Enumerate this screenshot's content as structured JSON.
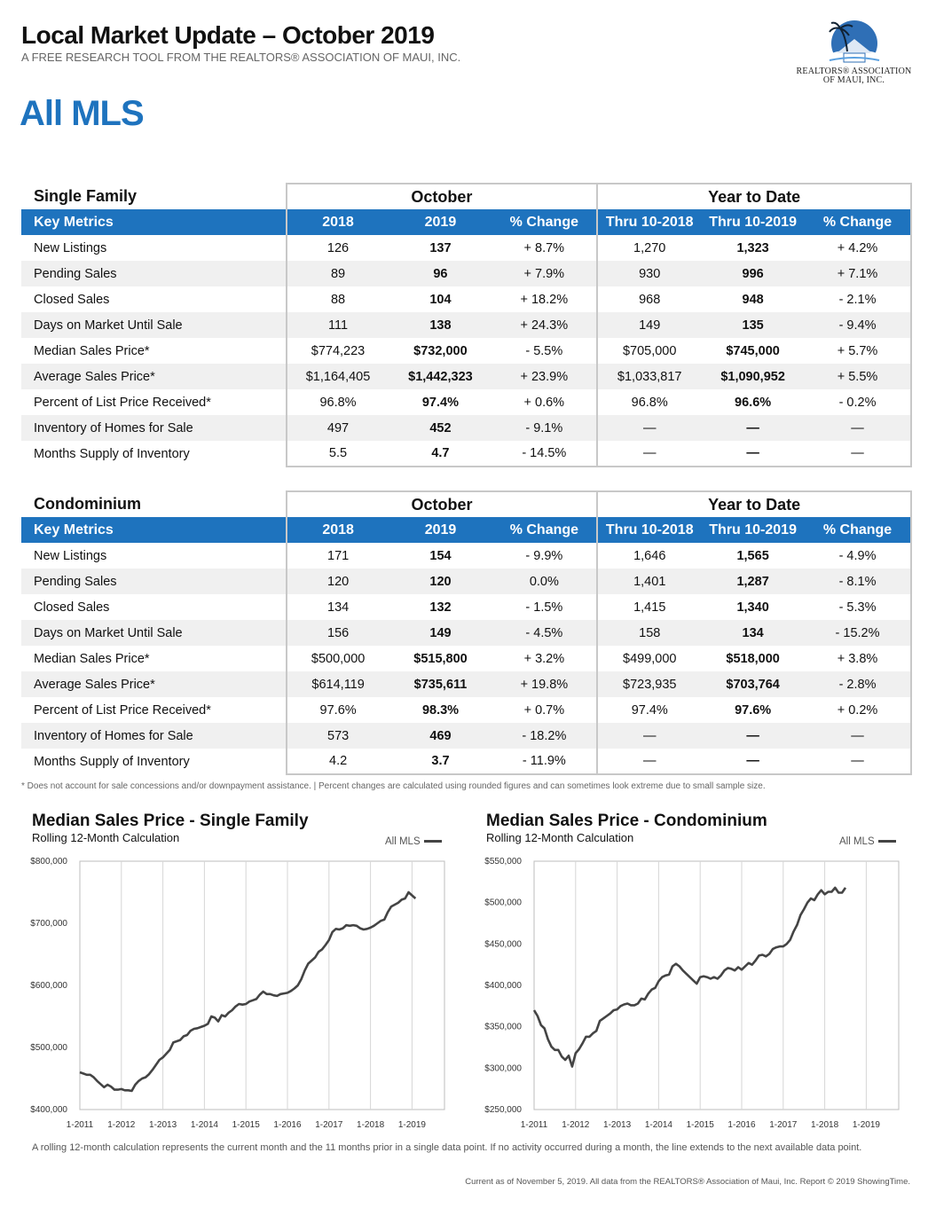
{
  "header": {
    "title": "Local Market Update – October 2019",
    "subtitle": "A FREE RESEARCH TOOL FROM THE REALTORS® ASSOCIATION OF MAUI, INC.",
    "area": "All MLS",
    "logo_line1": "REALTORS® ASSOCIATION",
    "logo_line2": "OF MAUI, INC."
  },
  "colors": {
    "accent": "#1e73be",
    "stripe": "#f0f0f0",
    "line": "#444444"
  },
  "tables": [
    {
      "title": "Single Family",
      "group_month": "October",
      "group_ytd": "Year to Date",
      "headers": [
        "Key Metrics",
        "2018",
        "2019",
        "% Change",
        "Thru 10-2018",
        "Thru 10-2019",
        "% Change"
      ],
      "rows": [
        [
          "New Listings",
          "126",
          "137",
          "+ 8.7%",
          "1,270",
          "1,323",
          "+ 4.2%"
        ],
        [
          "Pending Sales",
          "89",
          "96",
          "+ 7.9%",
          "930",
          "996",
          "+ 7.1%"
        ],
        [
          "Closed Sales",
          "88",
          "104",
          "+ 18.2%",
          "968",
          "948",
          "- 2.1%"
        ],
        [
          "Days on Market Until Sale",
          "111",
          "138",
          "+ 24.3%",
          "149",
          "135",
          "- 9.4%"
        ],
        [
          "Median Sales Price*",
          "$774,223",
          "$732,000",
          "- 5.5%",
          "$705,000",
          "$745,000",
          "+ 5.7%"
        ],
        [
          "Average Sales Price*",
          "$1,164,405",
          "$1,442,323",
          "+ 23.9%",
          "$1,033,817",
          "$1,090,952",
          "+ 5.5%"
        ],
        [
          "Percent of List Price Received*",
          "96.8%",
          "97.4%",
          "+ 0.6%",
          "96.8%",
          "96.6%",
          "- 0.2%"
        ],
        [
          "Inventory of Homes for Sale",
          "497",
          "452",
          "- 9.1%",
          "—",
          "—",
          "—"
        ],
        [
          "Months Supply of Inventory",
          "5.5",
          "4.7",
          "- 14.5%",
          "—",
          "—",
          "—"
        ]
      ]
    },
    {
      "title": "Condominium",
      "group_month": "October",
      "group_ytd": "Year to Date",
      "headers": [
        "Key Metrics",
        "2018",
        "2019",
        "% Change",
        "Thru 10-2018",
        "Thru 10-2019",
        "% Change"
      ],
      "rows": [
        [
          "New Listings",
          "171",
          "154",
          "- 9.9%",
          "1,646",
          "1,565",
          "- 4.9%"
        ],
        [
          "Pending Sales",
          "120",
          "120",
          "0.0%",
          "1,401",
          "1,287",
          "- 8.1%"
        ],
        [
          "Closed Sales",
          "134",
          "132",
          "- 1.5%",
          "1,415",
          "1,340",
          "- 5.3%"
        ],
        [
          "Days on Market Until Sale",
          "156",
          "149",
          "- 4.5%",
          "158",
          "134",
          "- 15.2%"
        ],
        [
          "Median Sales Price*",
          "$500,000",
          "$515,800",
          "+ 3.2%",
          "$499,000",
          "$518,000",
          "+ 3.8%"
        ],
        [
          "Average Sales Price*",
          "$614,119",
          "$735,611",
          "+ 19.8%",
          "$723,935",
          "$703,764",
          "- 2.8%"
        ],
        [
          "Percent of List Price Received*",
          "97.6%",
          "98.3%",
          "+ 0.7%",
          "97.4%",
          "97.6%",
          "+ 0.2%"
        ],
        [
          "Inventory of Homes for Sale",
          "573",
          "469",
          "- 18.2%",
          "—",
          "—",
          "—"
        ],
        [
          "Months Supply of Inventory",
          "4.2",
          "3.7",
          "- 11.9%",
          "—",
          "—",
          "—"
        ]
      ]
    }
  ],
  "footnote": "* Does not account for sale concessions and/or downpayment assistance. | Percent changes are calculated using rounded figures and can sometimes look extreme due to small sample size.",
  "chart_data": [
    {
      "type": "line",
      "title": "Median Sales Price - Single Family",
      "subtitle": "Rolling 12-Month Calculation",
      "legend": "All MLS",
      "legend_position": "top-right",
      "ylim": [
        400000,
        800000
      ],
      "yticks": [
        "$400,000",
        "$500,000",
        "$600,000",
        "$700,000",
        "$800,000"
      ],
      "xticks": [
        "1-2011",
        "1-2012",
        "1-2013",
        "1-2014",
        "1-2015",
        "1-2016",
        "1-2017",
        "1-2018",
        "1-2019"
      ],
      "grid": "vertical",
      "series": [
        {
          "name": "All MLS",
          "start": "1-2011",
          "values": [
            460000,
            458000,
            456000,
            456000,
            452000,
            446000,
            441000,
            436000,
            440000,
            437000,
            432000,
            432000,
            433000,
            431000,
            431000,
            430000,
            440000,
            446000,
            450000,
            452000,
            457000,
            464000,
            472000,
            480000,
            484000,
            490000,
            496000,
            508000,
            510000,
            512000,
            518000,
            520000,
            527000,
            530000,
            531000,
            533000,
            535000,
            538000,
            550000,
            548000,
            542000,
            552000,
            550000,
            556000,
            560000,
            566000,
            570000,
            569000,
            570000,
            574000,
            576000,
            578000,
            585000,
            590000,
            586000,
            586000,
            584000,
            583000,
            586000,
            587000,
            588000,
            591000,
            595000,
            600000,
            610000,
            624000,
            635000,
            640000,
            645000,
            654000,
            658000,
            665000,
            673000,
            686000,
            691000,
            690000,
            692000,
            697000,
            696000,
            697000,
            696000,
            692000,
            690000,
            691000,
            693000,
            696000,
            700000,
            704000,
            706000,
            718000,
            727000,
            730000,
            733000,
            738000,
            740000,
            750000,
            745000,
            740000
          ]
        }
      ]
    },
    {
      "type": "line",
      "title": "Median Sales Price - Condominium",
      "subtitle": "Rolling 12-Month Calculation",
      "legend": "All MLS",
      "legend_position": "top-right",
      "ylim": [
        250000,
        550000
      ],
      "yticks": [
        "$250,000",
        "$300,000",
        "$350,000",
        "$400,000",
        "$450,000",
        "$500,000",
        "$550,000"
      ],
      "xticks": [
        "1-2011",
        "1-2012",
        "1-2013",
        "1-2014",
        "1-2015",
        "1-2016",
        "1-2017",
        "1-2018",
        "1-2019"
      ],
      "grid": "vertical",
      "series": [
        {
          "name": "All MLS",
          "start": "1-2011",
          "values": [
            370000,
            363000,
            352000,
            348000,
            335000,
            326000,
            322000,
            322000,
            314000,
            310000,
            315000,
            302000,
            318000,
            323000,
            330000,
            338000,
            338000,
            342000,
            345000,
            357000,
            360000,
            363000,
            366000,
            370000,
            371000,
            375000,
            377000,
            378000,
            376000,
            376000,
            378000,
            384000,
            383000,
            390000,
            395000,
            397000,
            405000,
            410000,
            412000,
            413000,
            423000,
            426000,
            423000,
            418000,
            414000,
            410000,
            406000,
            402000,
            410000,
            411000,
            410000,
            408000,
            410000,
            408000,
            412000,
            418000,
            421000,
            420000,
            418000,
            422000,
            419000,
            423000,
            427000,
            425000,
            430000,
            436000,
            437000,
            435000,
            438000,
            444000,
            446000,
            447000,
            447000,
            450000,
            455000,
            465000,
            473000,
            485000,
            492000,
            500000,
            505000,
            503000,
            510000,
            515000,
            510000,
            513000,
            513000,
            518000,
            512000,
            512000,
            518000
          ]
        }
      ]
    }
  ],
  "bottom_note": "A rolling 12-month calculation represents the current month and the 11 months prior in a single data point. If no activity occurred during a month, the line extends to the next available data point.",
  "credit": "Current as of November 5, 2019. All data from the REALTORS® Association of Maui, Inc. Report © 2019 ShowingTime."
}
